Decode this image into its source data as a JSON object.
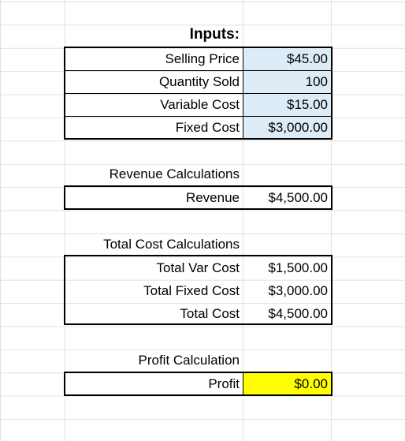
{
  "inputs": {
    "header": "Inputs:",
    "rows": [
      {
        "label": "Selling Price",
        "value": "$45.00"
      },
      {
        "label": "Quantity Sold",
        "value": "100"
      },
      {
        "label": "Variable Cost",
        "value": "$15.00"
      },
      {
        "label": "Fixed Cost",
        "value": "$3,000.00"
      }
    ]
  },
  "revenue": {
    "header": "Revenue Calculations",
    "label": "Revenue",
    "value": "$4,500.00"
  },
  "total_cost": {
    "header": "Total Cost Calculations",
    "rows": [
      {
        "label": "Total Var Cost",
        "value": "$1,500.00"
      },
      {
        "label": "Total Fixed Cost",
        "value": "$3,000.00"
      },
      {
        "label": "Total Cost",
        "value": "$4,500.00"
      }
    ]
  },
  "profit": {
    "header": "Profit Calculation",
    "label": "Profit",
    "value": "$0.00"
  },
  "colors": {
    "input_fill": "#ddebf7",
    "profit_fill": "#ffff00",
    "gridline": "#e1e1e1"
  }
}
